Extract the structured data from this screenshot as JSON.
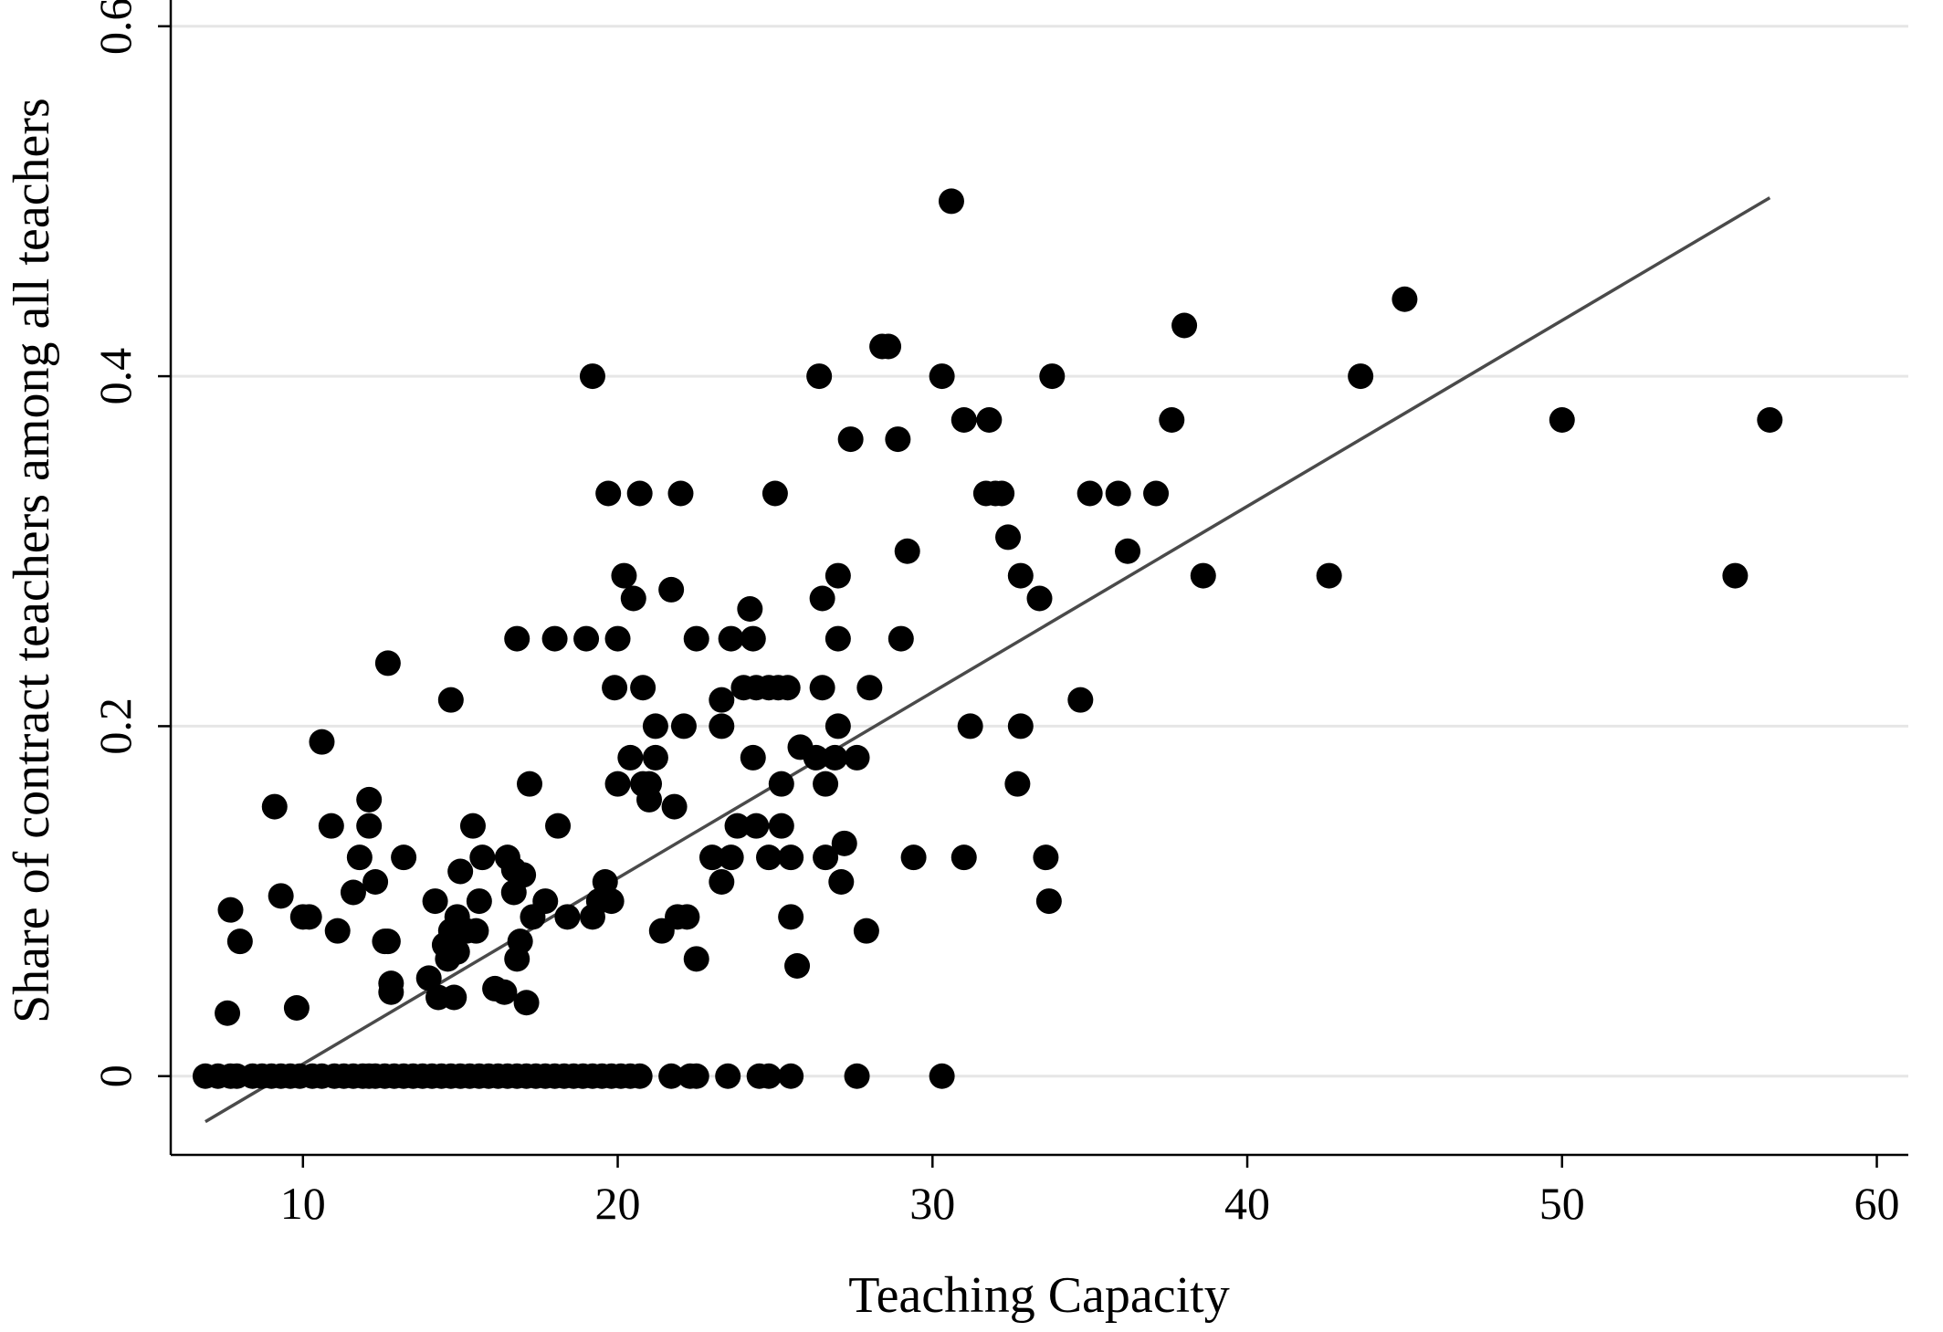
{
  "chart_data": {
    "type": "scatter",
    "title": "",
    "xlabel": "Teaching Capacity",
    "ylabel": "Share of contract teachers among all teachers",
    "xlim": [
      5.8,
      61.0
    ],
    "ylim": [
      -0.045,
      0.615
    ],
    "xticks": [
      10,
      20,
      30,
      40,
      50,
      60
    ],
    "xtick_labels": [
      "10",
      "20",
      "30",
      "40",
      "50",
      "60"
    ],
    "yticks": [
      0,
      0.2,
      0.4,
      0.6
    ],
    "ytick_labels": [
      "0",
      "0.2",
      "0.4",
      "0.6"
    ],
    "grid": "horizontal",
    "legend": "none",
    "colors": {
      "points": "#000000",
      "fit_line": "#4a4a4a",
      "grid": "#e6e6e6",
      "axis": "#000000"
    },
    "fit_line": {
      "x": [
        6.9,
        56.6
      ],
      "y": [
        -0.026,
        0.502
      ]
    },
    "series": [
      {
        "points": [
          [
            6.9,
            0
          ],
          [
            7.3,
            0
          ],
          [
            7.7,
            0
          ],
          [
            7.9,
            0
          ],
          [
            8.4,
            0
          ],
          [
            8.7,
            0
          ],
          [
            9.0,
            0
          ],
          [
            9.3,
            0
          ],
          [
            9.6,
            0
          ],
          [
            9.9,
            0
          ],
          [
            10.3,
            0
          ],
          [
            10.6,
            0
          ],
          [
            11.0,
            0
          ],
          [
            11.3,
            0
          ],
          [
            11.6,
            0
          ],
          [
            11.9,
            0
          ],
          [
            12.1,
            0
          ],
          [
            12.3,
            0
          ],
          [
            12.6,
            0
          ],
          [
            12.9,
            0
          ],
          [
            13.2,
            0
          ],
          [
            13.5,
            0
          ],
          [
            13.8,
            0
          ],
          [
            14.1,
            0
          ],
          [
            14.4,
            0
          ],
          [
            14.7,
            0
          ],
          [
            15.0,
            0
          ],
          [
            15.3,
            0
          ],
          [
            15.6,
            0
          ],
          [
            15.9,
            0
          ],
          [
            16.2,
            0
          ],
          [
            16.5,
            0
          ],
          [
            16.8,
            0
          ],
          [
            17.1,
            0
          ],
          [
            17.4,
            0
          ],
          [
            17.7,
            0
          ],
          [
            18.0,
            0
          ],
          [
            18.3,
            0
          ],
          [
            18.6,
            0
          ],
          [
            18.9,
            0
          ],
          [
            19.2,
            0
          ],
          [
            19.5,
            0
          ],
          [
            19.8,
            0
          ],
          [
            20.1,
            0
          ],
          [
            20.4,
            0
          ],
          [
            20.7,
            0
          ],
          [
            21.7,
            0
          ],
          [
            22.3,
            0
          ],
          [
            22.5,
            0
          ],
          [
            23.5,
            0
          ],
          [
            24.5,
            0
          ],
          [
            24.8,
            0
          ],
          [
            25.5,
            0
          ],
          [
            27.6,
            0
          ],
          [
            30.3,
            0
          ],
          [
            7.6,
            0.036
          ],
          [
            7.7,
            0.095
          ],
          [
            8.0,
            0.077
          ],
          [
            9.1,
            0.154
          ],
          [
            9.3,
            0.103
          ],
          [
            9.8,
            0.039
          ],
          [
            10.0,
            0.091
          ],
          [
            10.2,
            0.091
          ],
          [
            10.6,
            0.191
          ],
          [
            10.9,
            0.143
          ],
          [
            11.1,
            0.083
          ],
          [
            11.6,
            0.105
          ],
          [
            11.8,
            0.125
          ],
          [
            12.1,
            0.143
          ],
          [
            12.1,
            0.158
          ],
          [
            12.3,
            0.111
          ],
          [
            12.6,
            0.077
          ],
          [
            12.7,
            0.077
          ],
          [
            12.7,
            0.236
          ],
          [
            12.8,
            0.048
          ],
          [
            12.8,
            0.053
          ],
          [
            13.2,
            0.125
          ],
          [
            14.0,
            0.056
          ],
          [
            14.2,
            0.1
          ],
          [
            14.3,
            0.045
          ],
          [
            14.5,
            0.075
          ],
          [
            14.6,
            0.067
          ],
          [
            14.7,
            0.083
          ],
          [
            14.7,
            0.215
          ],
          [
            14.8,
            0.045
          ],
          [
            14.9,
            0.071
          ],
          [
            14.9,
            0.091
          ],
          [
            15.0,
            0.117
          ],
          [
            15.2,
            0.083
          ],
          [
            15.4,
            0.143
          ],
          [
            15.5,
            0.083
          ],
          [
            15.6,
            0.1
          ],
          [
            15.7,
            0.125
          ],
          [
            16.1,
            0.05
          ],
          [
            16.4,
            0.048
          ],
          [
            16.5,
            0.125
          ],
          [
            16.7,
            0.118
          ],
          [
            16.7,
            0.105
          ],
          [
            16.8,
            0.25
          ],
          [
            16.8,
            0.067
          ],
          [
            16.9,
            0.077
          ],
          [
            17.0,
            0.115
          ],
          [
            17.1,
            0.042
          ],
          [
            17.2,
            0.167
          ],
          [
            17.3,
            0.091
          ],
          [
            17.7,
            0.1
          ],
          [
            18.0,
            0.25
          ],
          [
            18.1,
            0.143
          ],
          [
            18.4,
            0.091
          ],
          [
            19.0,
            0.25
          ],
          [
            19.2,
            0.4
          ],
          [
            19.2,
            0.091
          ],
          [
            19.4,
            0.1
          ],
          [
            19.6,
            0.111
          ],
          [
            19.7,
            0.333
          ],
          [
            19.8,
            0.1
          ],
          [
            19.9,
            0.222
          ],
          [
            20.0,
            0.25
          ],
          [
            20.0,
            0.167
          ],
          [
            20.2,
            0.286
          ],
          [
            20.4,
            0.182
          ],
          [
            20.5,
            0.273
          ],
          [
            20.7,
            0.333
          ],
          [
            20.8,
            0.222
          ],
          [
            20.8,
            0.167
          ],
          [
            21.0,
            0.167
          ],
          [
            21.0,
            0.158
          ],
          [
            21.2,
            0.2
          ],
          [
            21.2,
            0.182
          ],
          [
            21.4,
            0.083
          ],
          [
            21.7,
            0.278
          ],
          [
            21.8,
            0.154
          ],
          [
            21.9,
            0.091
          ],
          [
            22.0,
            0.333
          ],
          [
            22.1,
            0.2
          ],
          [
            22.2,
            0.091
          ],
          [
            22.5,
            0.067
          ],
          [
            22.5,
            0.25
          ],
          [
            23.0,
            0.125
          ],
          [
            23.3,
            0.2
          ],
          [
            23.3,
            0.215
          ],
          [
            23.3,
            0.111
          ],
          [
            23.6,
            0.25
          ],
          [
            23.6,
            0.125
          ],
          [
            23.8,
            0.143
          ],
          [
            24.0,
            0.222
          ],
          [
            24.2,
            0.267
          ],
          [
            24.3,
            0.182
          ],
          [
            24.3,
            0.25
          ],
          [
            24.4,
            0.143
          ],
          [
            24.4,
            0.222
          ],
          [
            24.8,
            0.222
          ],
          [
            24.8,
            0.125
          ],
          [
            25.0,
            0.333
          ],
          [
            25.1,
            0.222
          ],
          [
            25.2,
            0.143
          ],
          [
            25.2,
            0.167
          ],
          [
            25.4,
            0.222
          ],
          [
            25.5,
            0.125
          ],
          [
            25.5,
            0.091
          ],
          [
            25.7,
            0.063
          ],
          [
            25.8,
            0.188
          ],
          [
            26.3,
            0.182
          ],
          [
            26.4,
            0.4
          ],
          [
            26.5,
            0.273
          ],
          [
            26.5,
            0.222
          ],
          [
            26.6,
            0.167
          ],
          [
            26.6,
            0.125
          ],
          [
            26.9,
            0.182
          ],
          [
            27.0,
            0.286
          ],
          [
            27.0,
            0.25
          ],
          [
            27.0,
            0.2
          ],
          [
            27.1,
            0.111
          ],
          [
            27.2,
            0.133
          ],
          [
            27.4,
            0.364
          ],
          [
            27.6,
            0.182
          ],
          [
            27.9,
            0.083
          ],
          [
            28.0,
            0.222
          ],
          [
            28.4,
            0.417
          ],
          [
            28.6,
            0.417
          ],
          [
            28.9,
            0.364
          ],
          [
            29.0,
            0.25
          ],
          [
            29.2,
            0.3
          ],
          [
            29.4,
            0.125
          ],
          [
            30.3,
            0.4
          ],
          [
            30.6,
            0.5
          ],
          [
            31.0,
            0.375
          ],
          [
            31.0,
            0.125
          ],
          [
            31.2,
            0.2
          ],
          [
            31.7,
            0.333
          ],
          [
            31.8,
            0.375
          ],
          [
            32.0,
            0.333
          ],
          [
            32.2,
            0.333
          ],
          [
            32.4,
            0.308
          ],
          [
            32.7,
            0.167
          ],
          [
            32.8,
            0.286
          ],
          [
            32.8,
            0.2
          ],
          [
            33.4,
            0.273
          ],
          [
            33.6,
            0.125
          ],
          [
            33.7,
            0.1
          ],
          [
            33.8,
            0.4
          ],
          [
            34.7,
            0.215
          ],
          [
            35.0,
            0.333
          ],
          [
            35.9,
            0.333
          ],
          [
            36.2,
            0.3
          ],
          [
            37.1,
            0.333
          ],
          [
            37.6,
            0.375
          ],
          [
            38.0,
            0.429
          ],
          [
            38.6,
            0.286
          ],
          [
            42.6,
            0.286
          ],
          [
            43.6,
            0.4
          ],
          [
            45.0,
            0.444
          ],
          [
            50.0,
            0.375
          ],
          [
            55.5,
            0.286
          ],
          [
            56.6,
            0.375
          ]
        ]
      }
    ]
  }
}
